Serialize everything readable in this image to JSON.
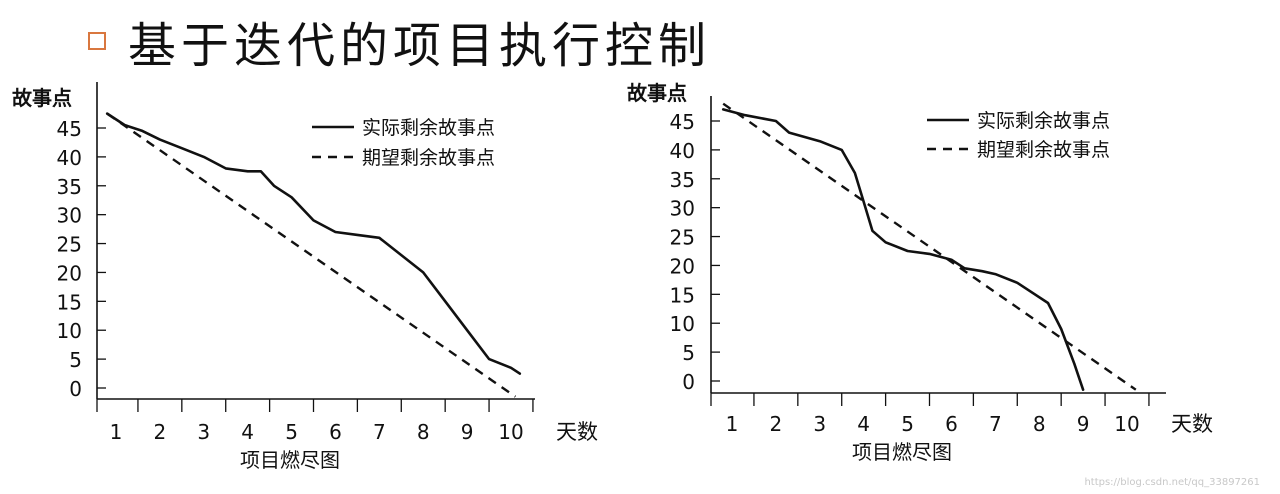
{
  "title": "基于迭代的项目执行控制",
  "watermark": "https://blog.csdn.net/qq_33897261",
  "colors": {
    "bullet": "#d9773f",
    "line": "#111111"
  },
  "chart_data": [
    {
      "type": "line",
      "ylabel": "故事点",
      "xlabel": "项目燃尽图",
      "xunit": "天数",
      "xticks": [
        1,
        2,
        3,
        4,
        5,
        6,
        7,
        8,
        9,
        10
      ],
      "yticks": [
        0,
        5,
        10,
        15,
        20,
        25,
        30,
        35,
        40,
        45
      ],
      "legend_position": "top-right",
      "series": [
        {
          "name": "实际剩余故事点",
          "style": "solid",
          "points": [
            [
              0.8,
              47.5
            ],
            [
              1.2,
              45.5
            ],
            [
              1.6,
              44.5
            ],
            [
              2.0,
              43
            ],
            [
              2.5,
              41.5
            ],
            [
              3.0,
              40
            ],
            [
              3.5,
              38
            ],
            [
              4.0,
              37.5
            ],
            [
              4.3,
              37.5
            ],
            [
              4.6,
              35
            ],
            [
              5.0,
              33
            ],
            [
              5.5,
              29
            ],
            [
              6.0,
              27
            ],
            [
              6.5,
              26.5
            ],
            [
              7.0,
              26
            ],
            [
              7.5,
              23
            ],
            [
              8.0,
              20
            ],
            [
              8.5,
              15
            ],
            [
              9.0,
              10
            ],
            [
              9.5,
              5
            ],
            [
              10.0,
              3.5
            ],
            [
              10.2,
              2.5
            ]
          ]
        },
        {
          "name": "期望剩余故事点",
          "style": "dashed",
          "points": [
            [
              0.8,
              47.5
            ],
            [
              10.1,
              -1.5
            ]
          ]
        }
      ]
    },
    {
      "type": "line",
      "ylabel": "故事点",
      "xlabel": "项目燃尽图",
      "xunit": "天数",
      "xticks": [
        1,
        2,
        3,
        4,
        5,
        6,
        7,
        8,
        9,
        10
      ],
      "yticks": [
        0,
        5,
        10,
        15,
        20,
        25,
        30,
        35,
        40,
        45
      ],
      "legend_position": "top-right",
      "series": [
        {
          "name": "实际剩余故事点",
          "style": "solid",
          "points": [
            [
              0.8,
              47
            ],
            [
              1.3,
              46
            ],
            [
              2.0,
              45
            ],
            [
              2.3,
              43
            ],
            [
              3.0,
              41.5
            ],
            [
              3.5,
              40
            ],
            [
              3.8,
              36
            ],
            [
              4.0,
              31
            ],
            [
              4.2,
              26
            ],
            [
              4.5,
              24
            ],
            [
              5.0,
              22.5
            ],
            [
              5.5,
              22
            ],
            [
              6.0,
              21
            ],
            [
              6.3,
              19.5
            ],
            [
              6.7,
              19
            ],
            [
              7.0,
              18.5
            ],
            [
              7.5,
              17
            ],
            [
              7.9,
              15
            ],
            [
              8.2,
              13.5
            ],
            [
              8.5,
              9
            ],
            [
              8.8,
              3
            ],
            [
              9.0,
              -1.5
            ]
          ]
        },
        {
          "name": "期望剩余故事点",
          "style": "dashed",
          "points": [
            [
              0.8,
              48
            ],
            [
              10.2,
              -1.5
            ]
          ]
        }
      ]
    }
  ]
}
